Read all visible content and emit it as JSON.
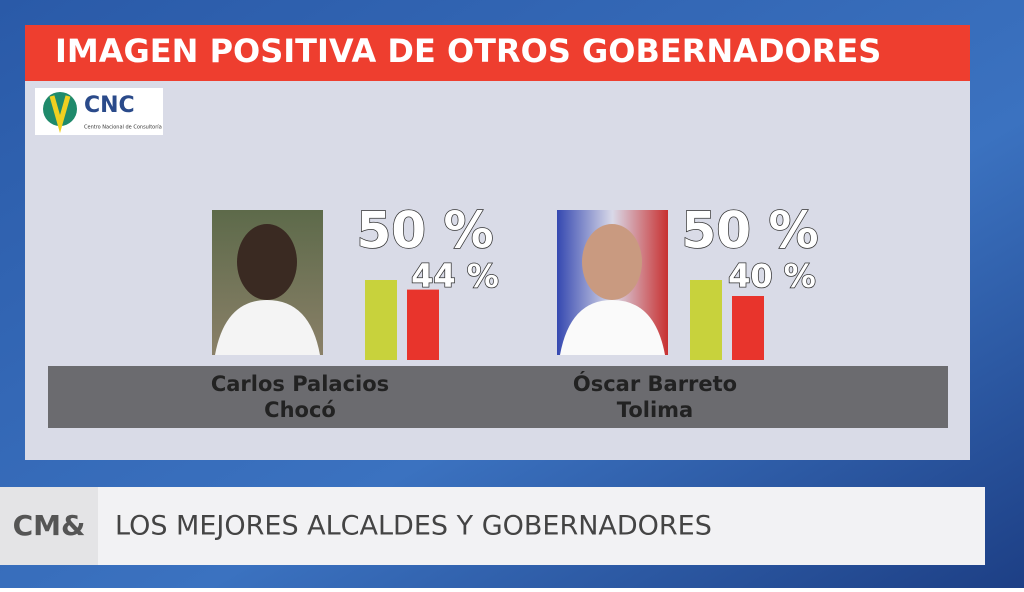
{
  "header": {
    "title": "IMAGEN POSITIVA DE OTROS GOBERNADORES"
  },
  "logo": {
    "text": "CNC",
    "caption": "Centro Nacional de Consultoría"
  },
  "chart_data": [
    {
      "type": "bar",
      "title": "Carlos Palacios",
      "subtitle": "Chocó",
      "values": [
        50,
        44
      ],
      "value_labels": [
        "50 %",
        "44 %"
      ],
      "colors": [
        "#c8d23c",
        "#e8342c"
      ]
    },
    {
      "type": "bar",
      "title": "Óscar Barreto",
      "subtitle": "Tolima",
      "values": [
        50,
        40
      ],
      "value_labels": [
        "50 %",
        "40 %"
      ],
      "colors": [
        "#c8d23c",
        "#e8342c"
      ]
    }
  ],
  "footer": {
    "brand": "CM&",
    "text": "LOS MEJORES ALCALDES Y GOBERNADORES"
  }
}
